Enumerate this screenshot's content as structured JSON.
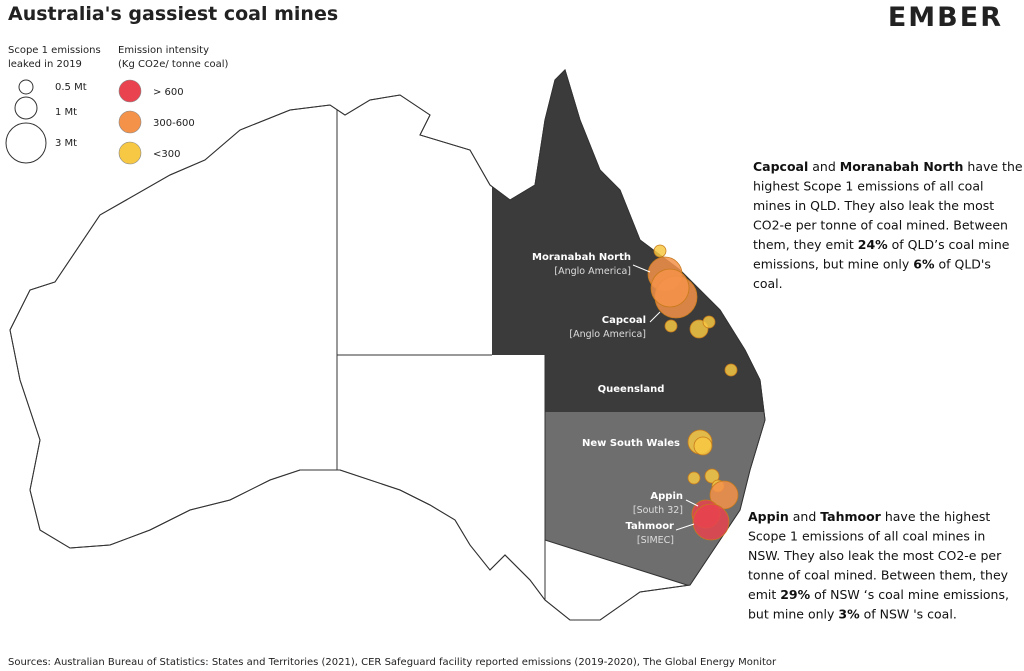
{
  "header": {
    "title": "Australia's gassiest coal mines",
    "logo": "EMBER"
  },
  "legend": {
    "size_title": [
      "Scope 1 emissions",
      "leaked in 2019"
    ],
    "sizes": [
      "0.5 Mt",
      "1 Mt",
      "3 Mt"
    ],
    "color_title": [
      "Emission intensity",
      "(Kg CO2e/ tonne coal)"
    ],
    "colors": [
      {
        "label": "> 600",
        "color": "#e8434f"
      },
      {
        "label": "300-600",
        "color": "#f5924a"
      },
      {
        "label": "<300",
        "color": "#f7c843"
      }
    ]
  },
  "map_labels": {
    "mines": [
      {
        "name": "Moranabah North",
        "owner": "[Anglo America]"
      },
      {
        "name": "Capcoal",
        "owner": "[Anglo America]"
      },
      {
        "name": "Appin",
        "owner": "[South 32]"
      },
      {
        "name": "Tahmoor",
        "owner": "[SIMEC]"
      }
    ],
    "states": [
      "Queensland",
      "New South Wales"
    ]
  },
  "annotations": [
    {
      "lines": [
        [
          {
            "text": "Capcoal",
            "bold": true
          },
          " and ",
          {
            "text": "Moranabah North",
            "bold": true
          },
          " have the"
        ],
        [
          "highest Scope 1 emissions of all coal"
        ],
        [
          "mines in QLD. They also leak the most"
        ],
        [
          "CO2-e per tonne of coal mined. Between"
        ],
        [
          "them, they emit ",
          {
            "text": "24%",
            "bold": true
          },
          " of QLD’s coal mine"
        ],
        [
          "emissions, but mine only ",
          {
            "text": "6%",
            "bold": true
          },
          " of QLD's"
        ],
        [
          "coal."
        ]
      ]
    },
    {
      "lines": [
        [
          {
            "text": "Appin",
            "bold": true
          },
          " and ",
          {
            "text": "Tahmoor",
            "bold": true
          },
          " have the highest"
        ],
        [
          "Scope 1 emissions of all coal mines in"
        ],
        [
          "NSW. They also leak the most CO2-e per"
        ],
        [
          "tonne of coal mined. Between them, they"
        ],
        [
          "emit ",
          {
            "text": "29%",
            "bold": true
          },
          " of NSW ‘s coal mine emissions,"
        ],
        [
          "but mine only ",
          {
            "text": "3%",
            "bold": true
          },
          " of NSW 's coal."
        ]
      ]
    }
  ],
  "footer": {
    "source": "Sources: Australian Bureau of Statistics: States and Territories (2021), CER Safeguard facility reported emissions (2019-2020), The Global Energy Monitor"
  }
}
